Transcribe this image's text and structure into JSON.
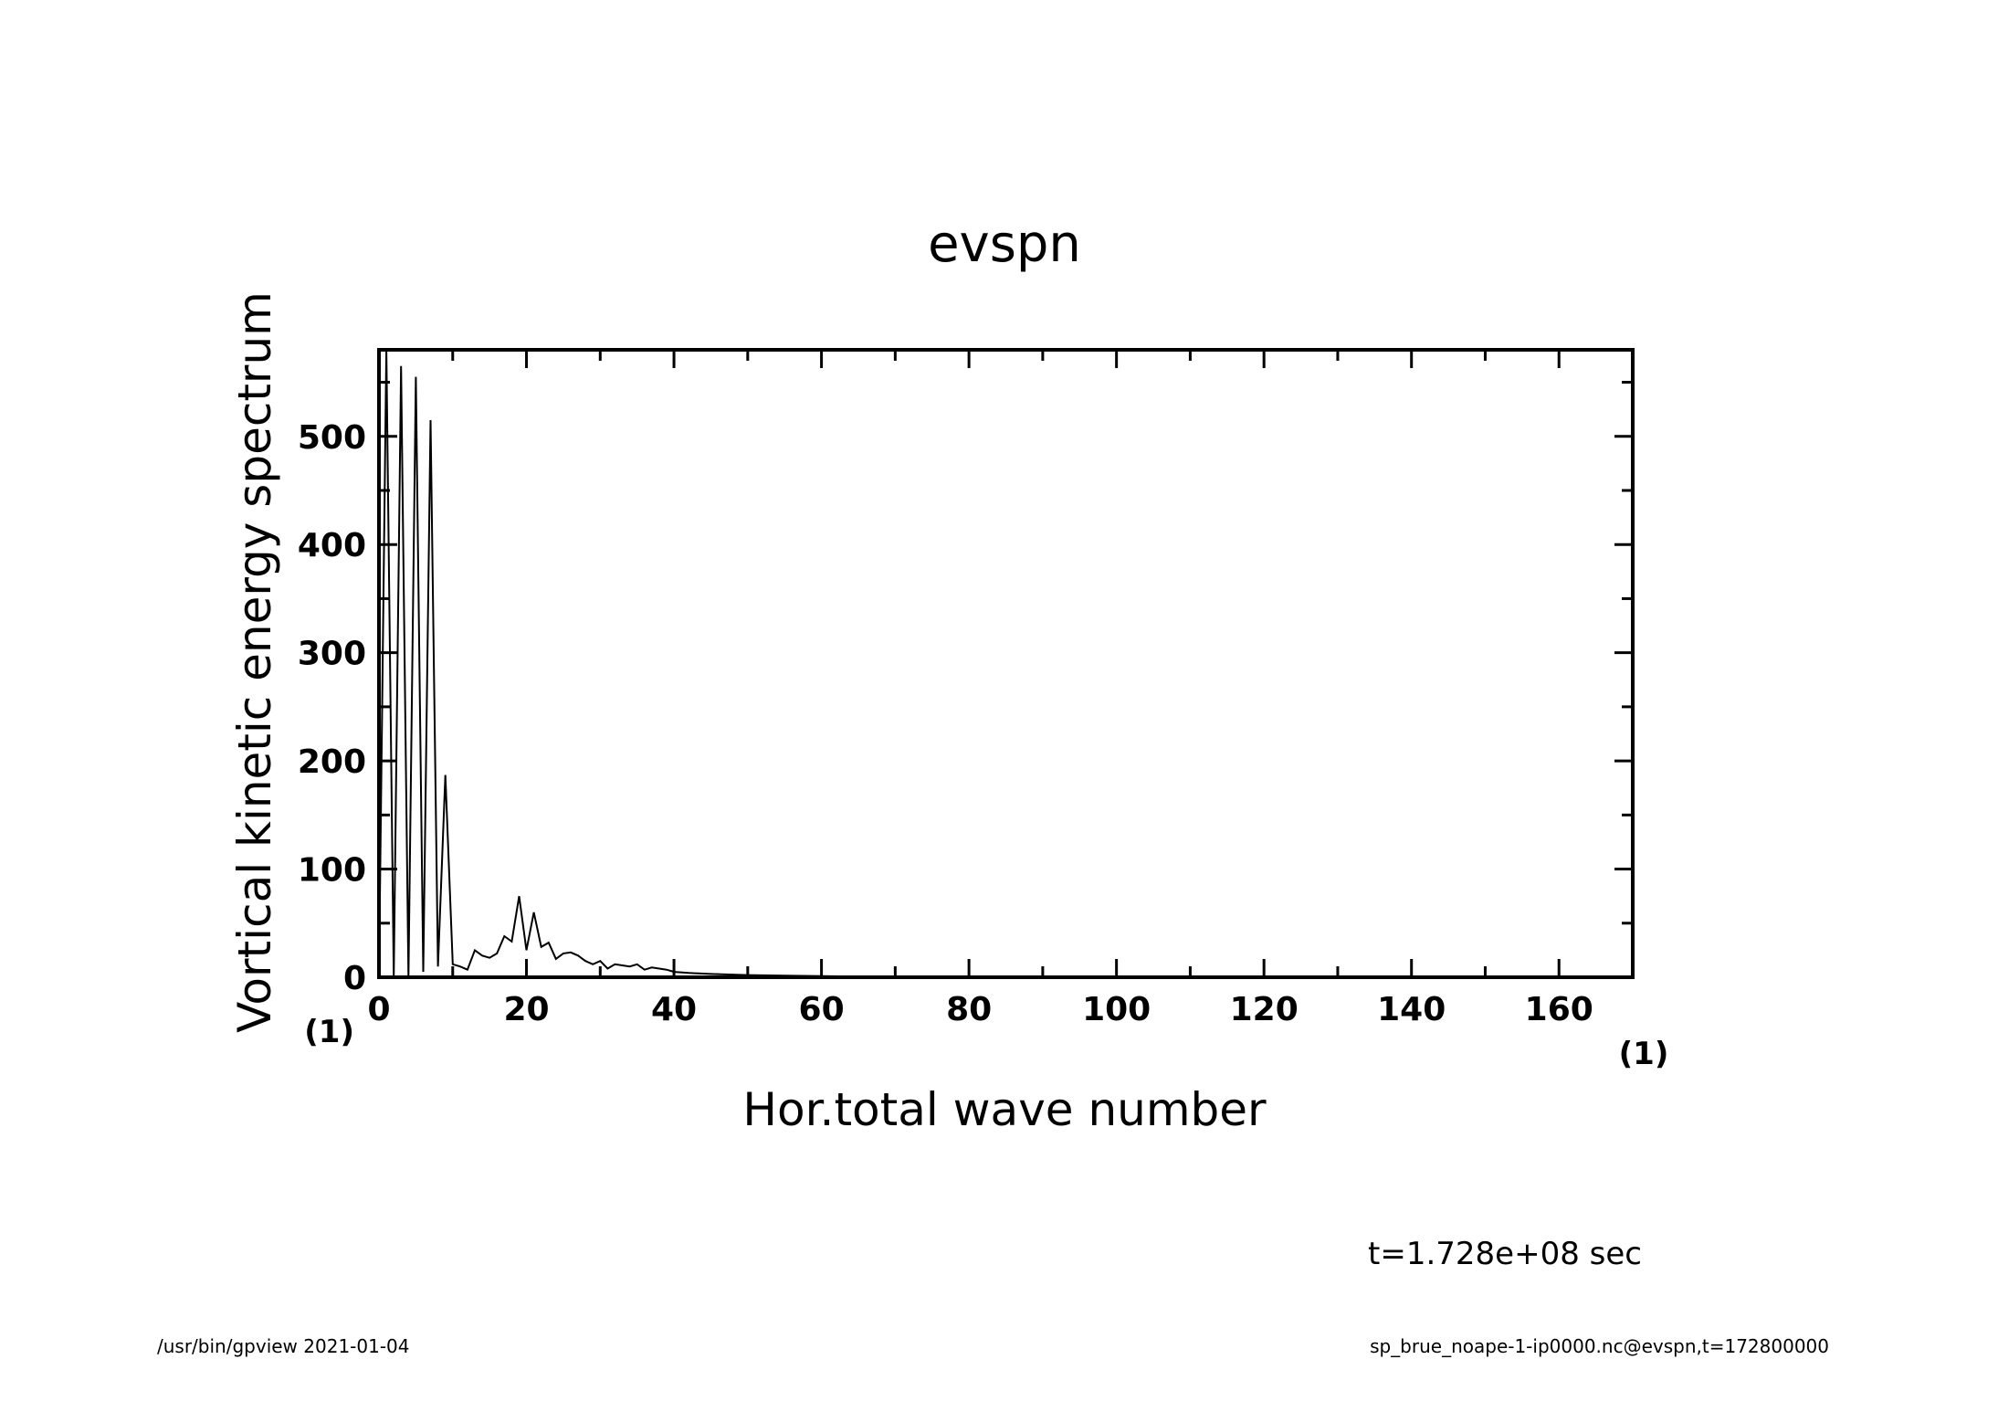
{
  "chart_data": {
    "type": "line",
    "title": "evspn",
    "xlabel": "Hor.total wave number",
    "ylabel": "Vortical kinetic energy spectrum",
    "x_unit": "(1)",
    "y_unit": "(1)",
    "xlim": [
      0,
      170
    ],
    "ylim": [
      0,
      580
    ],
    "x_ticks": [
      0,
      20,
      40,
      60,
      80,
      100,
      120,
      140,
      160
    ],
    "y_ticks": [
      0,
      100,
      200,
      300,
      400,
      500
    ],
    "grid": false,
    "series": [
      {
        "x": [
          0,
          1,
          2,
          3,
          4,
          5,
          6,
          7,
          8,
          9,
          10,
          11,
          12,
          13,
          14,
          15,
          16,
          17,
          18,
          19,
          20,
          21,
          22,
          23,
          24,
          25,
          26,
          27,
          28,
          29,
          30,
          31,
          32,
          33,
          34,
          35,
          36,
          37,
          38,
          39,
          40,
          42,
          45,
          50,
          55,
          60,
          65,
          70,
          80,
          100,
          120,
          140,
          160,
          170
        ],
        "y": [
          0,
          600,
          0,
          565,
          0,
          555,
          5,
          515,
          10,
          187,
          12,
          10,
          7,
          25,
          20,
          18,
          22,
          38,
          33,
          75,
          25,
          60,
          28,
          32,
          17,
          22,
          23,
          20,
          15,
          12,
          15,
          8,
          12,
          11,
          10,
          12,
          7,
          9,
          8,
          7,
          5,
          4,
          3,
          2,
          1.5,
          1,
          0.6,
          0.4,
          0.2,
          0.1,
          0.05,
          0.02,
          0.01,
          0
        ]
      }
    ]
  },
  "annotations": {
    "time": "t=1.728e+08 sec",
    "footer_left": "/usr/bin/gpview   2021-01-04",
    "footer_right": "sp_brue_noape-1-ip0000.nc@evspn,t=172800000"
  }
}
